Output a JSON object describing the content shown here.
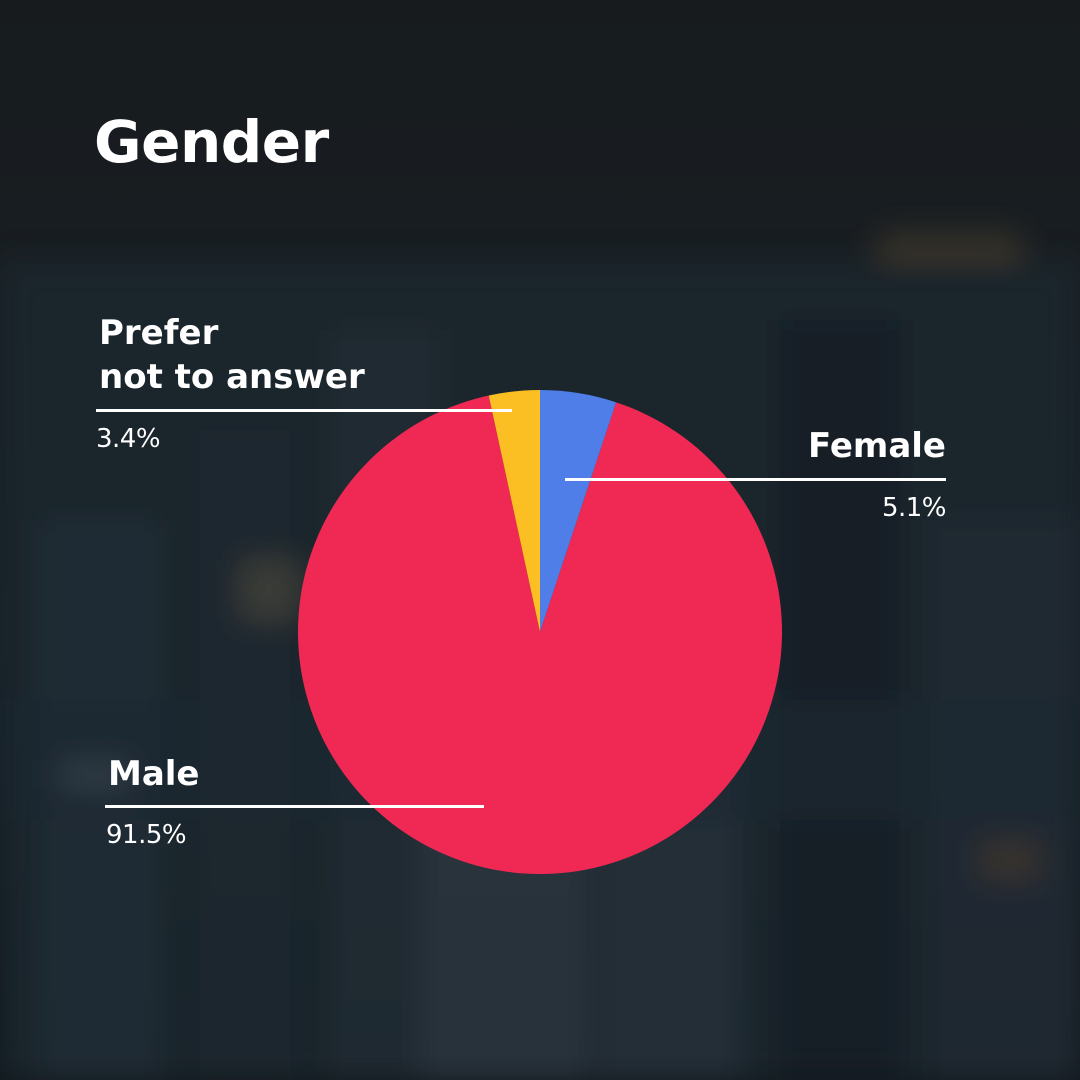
{
  "title": "Gender",
  "chart_data": {
    "type": "pie",
    "title": "Gender",
    "start": "12 o'clock, clockwise",
    "slices": [
      {
        "label": "Female",
        "value": 5.1,
        "value_label": "5.1%",
        "color": "#4f7ee8"
      },
      {
        "label": "Male",
        "value": 91.5,
        "value_label": "91.5%",
        "color": "#ef2954"
      },
      {
        "label": "Prefer not to answer",
        "value": 3.4,
        "value_label": "3.4%",
        "color": "#fbbf24"
      }
    ]
  },
  "labels": {
    "prefer_line1": "Prefer",
    "prefer_line2": "not to answer"
  }
}
